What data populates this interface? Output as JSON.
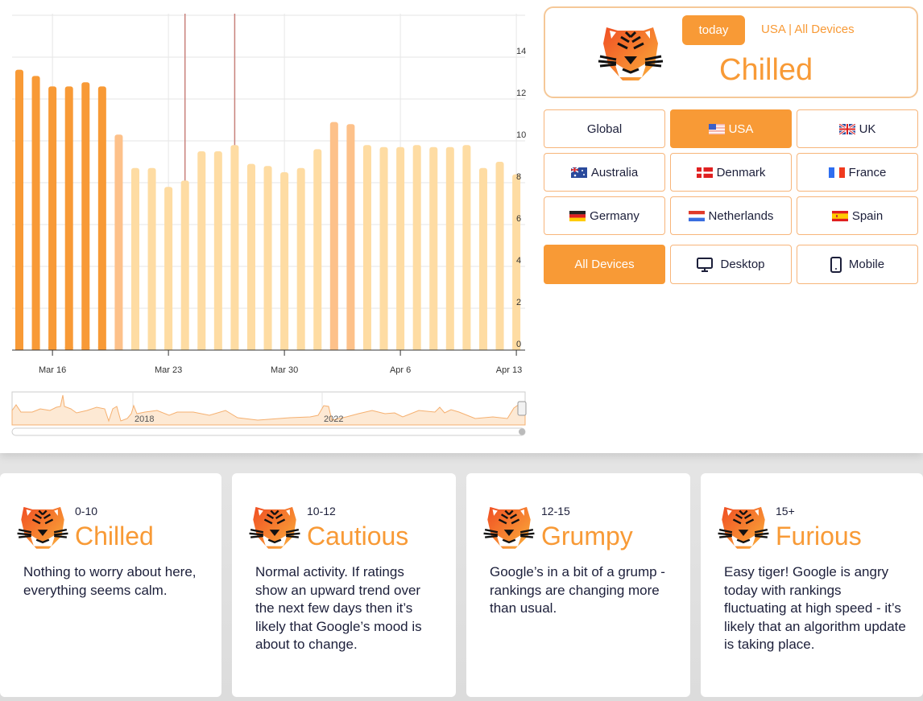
{
  "chart_data": {
    "type": "bar",
    "x": [
      "Mar 14",
      "Mar 15",
      "Mar 16",
      "Mar 17",
      "Mar 18",
      "Mar 19",
      "Mar 20",
      "Mar 21",
      "Mar 22",
      "Mar 23",
      "Mar 24",
      "Mar 25",
      "Mar 26",
      "Mar 27",
      "Mar 28",
      "Mar 29",
      "Mar 30",
      "Mar 31",
      "Apr 1",
      "Apr 2",
      "Apr 3",
      "Apr 4",
      "Apr 5",
      "Apr 6",
      "Apr 7",
      "Apr 8",
      "Apr 9",
      "Apr 10",
      "Apr 11",
      "Apr 12",
      "Apr 13"
    ],
    "values": [
      13.4,
      13.1,
      12.6,
      12.6,
      12.8,
      12.6,
      10.3,
      8.7,
      8.7,
      7.8,
      8.1,
      9.5,
      9.5,
      9.8,
      8.9,
      8.8,
      8.5,
      8.7,
      9.6,
      10.9,
      10.8,
      9.8,
      9.7,
      9.7,
      9.8,
      9.7,
      9.7,
      9.8,
      8.7,
      9.0,
      8.4
    ],
    "x_tick_labels": [
      "Mar 16",
      "Mar 23",
      "Mar 30",
      "Apr 6",
      "Apr 13"
    ],
    "y_tick_labels": [
      "0",
      "2",
      "4",
      "6",
      "8",
      "10",
      "12",
      "14"
    ],
    "ylim": [
      0,
      16
    ],
    "grid": true,
    "y_axis_side": "right",
    "annotation_dates": [
      "Mar 24",
      "Mar 27"
    ],
    "color_thresholds": {
      "above_12": "#f89a36",
      "10_to_12": "#fdc18a",
      "below_10": "#fedca3"
    },
    "annotation_color": "#c8817b",
    "navigator_labels": [
      "2018",
      "2022"
    ]
  },
  "mood": {
    "today_label": "today",
    "scope": "USA | All Devices",
    "name": "Chilled"
  },
  "regions": [
    {
      "label": "Global",
      "flag": null,
      "active": false
    },
    {
      "label": "USA",
      "flag": "us",
      "active": true
    },
    {
      "label": "UK",
      "flag": "uk",
      "active": false
    },
    {
      "label": "Australia",
      "flag": "au",
      "active": false
    },
    {
      "label": "Denmark",
      "flag": "dk",
      "active": false
    },
    {
      "label": "France",
      "flag": "fr",
      "active": false
    },
    {
      "label": "Germany",
      "flag": "de",
      "active": false
    },
    {
      "label": "Netherlands",
      "flag": "nl",
      "active": false
    },
    {
      "label": "Spain",
      "flag": "es",
      "active": false
    }
  ],
  "devices": [
    {
      "label": "All Devices",
      "icon": "all-devices",
      "active": true
    },
    {
      "label": "Desktop",
      "icon": "desktop-icon",
      "active": false
    },
    {
      "label": "Mobile",
      "icon": "mobile-icon",
      "active": false
    }
  ],
  "legend": [
    {
      "range": "0-10",
      "name": "Chilled",
      "desc": "Nothing to worry about here, everything seems calm."
    },
    {
      "range": "10-12",
      "name": "Cautious",
      "desc": "Normal activity. If ratings show an upward trend over the next few days then it’s likely that Google’s mood is about to change."
    },
    {
      "range": "12-15",
      "name": "Grumpy",
      "desc": "Google’s in a bit of a grump - rankings are changing more than usual."
    },
    {
      "range": "15+",
      "name": "Furious",
      "desc": "Easy tiger! Google is angry today with rankings fluctuating at high speed - it’s likely that an algorithm update is taking place."
    }
  ],
  "colors": {
    "accent": "#f89a36",
    "text": "#1c1f3a"
  }
}
